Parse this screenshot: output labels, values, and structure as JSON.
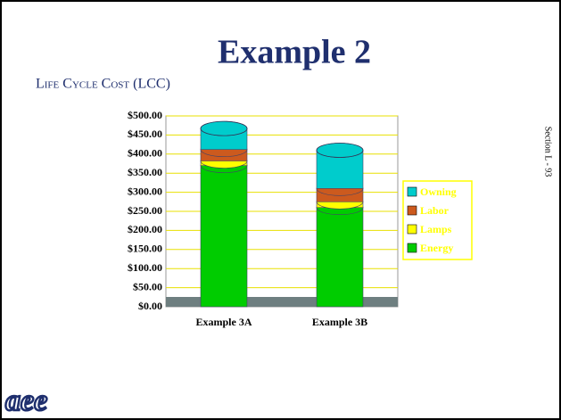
{
  "title": "Example 2",
  "subtitle": "Life Cycle Cost (LCC)",
  "side_note": "Section L - 93",
  "logo": "aee",
  "chart_data": {
    "type": "stacked_bar",
    "categories": [
      "Example 3A",
      "Example 3B"
    ],
    "series": [
      {
        "name": "Energy",
        "color": "#00cc00",
        "values": [
          370,
          260
        ]
      },
      {
        "name": "Lamps",
        "color": "#ffff00",
        "values": [
          12,
          15
        ]
      },
      {
        "name": "Labor",
        "color": "#cc5a1e",
        "values": [
          30,
          35
        ]
      },
      {
        "name": "Owning",
        "color": "#00cccc",
        "values": [
          55,
          100
        ]
      }
    ],
    "ylim": [
      0,
      500
    ],
    "yticks": [
      {
        "value": 0,
        "label": "$0.00"
      },
      {
        "value": 50,
        "label": "$50.00"
      },
      {
        "value": 100,
        "label": "$100.00"
      },
      {
        "value": 150,
        "label": "$150.00"
      },
      {
        "value": 200,
        "label": "$200.00"
      },
      {
        "value": 250,
        "label": "$250.00"
      },
      {
        "value": 300,
        "label": "$300.00"
      },
      {
        "value": 350,
        "label": "$350.00"
      },
      {
        "value": 400,
        "label": "$400.00"
      },
      {
        "value": 450,
        "label": "$450.00"
      },
      {
        "value": 500,
        "label": "$500.00"
      }
    ],
    "grid": true,
    "legend": "right"
  }
}
